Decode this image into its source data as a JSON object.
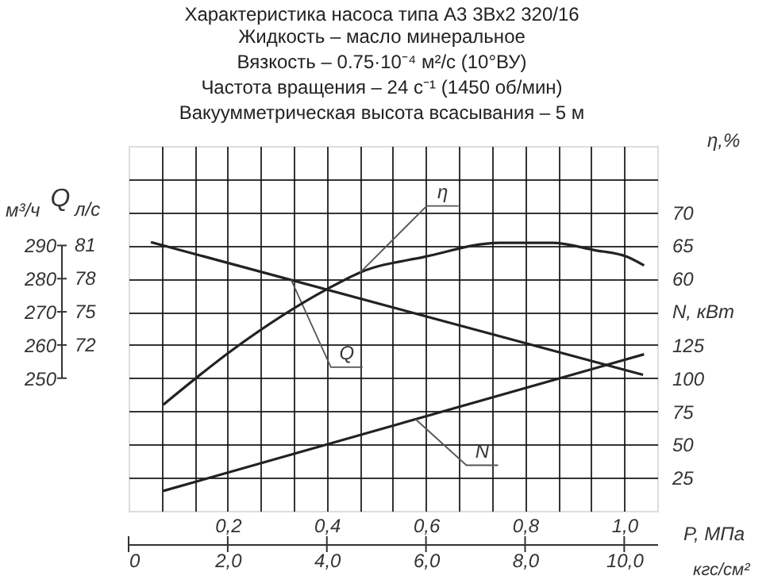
{
  "chart_data": {
    "type": "line",
    "title": "Характеристика насоса типа А3 3Вх2 320/16",
    "subtitle": "Жидкость – масло минеральное\nВязкость – 0.75·10⁻⁴ м²/с (10°ВУ)\nЧастота вращения – 24 с⁻¹ (1450 об/мин)\nВакуумметрическая высота всасывания – 5 м",
    "xlabel": "P, МПа",
    "x2label": "кгс/см²",
    "ylabel": "м³/ч",
    "y2label": "η,%",
    "y3label": "N, кВт",
    "annotations": [
      "Q",
      "л/с",
      "81",
      "78",
      "75",
      "72"
    ],
    "xlim": [
      0,
      1.0667
    ],
    "xticks": [
      {
        "value": 0.0667,
        "label": null
      },
      {
        "value": 0.1333,
        "label": null
      },
      {
        "value": 0.2,
        "label": "0,2"
      },
      {
        "value": 0.2667,
        "label": null
      },
      {
        "value": 0.3333,
        "label": null
      },
      {
        "value": 0.4,
        "label": "0,4"
      },
      {
        "value": 0.4667,
        "label": null
      },
      {
        "value": 0.5333,
        "label": null
      },
      {
        "value": 0.6,
        "label": "0,6"
      },
      {
        "value": 0.6667,
        "label": null
      },
      {
        "value": 0.7333,
        "label": null
      },
      {
        "value": 0.8,
        "label": "0,8"
      },
      {
        "value": 0.8667,
        "label": null
      },
      {
        "value": 0.9333,
        "label": null
      },
      {
        "value": 1.0,
        "label": "1,0"
      }
    ],
    "x2lim": [
      0,
      10.667
    ],
    "x2ticks": [
      0,
      {
        "value": 2,
        "label": "2,0"
      },
      {
        "value": 4,
        "label": "4,0"
      },
      {
        "value": 6,
        "label": "6,0"
      },
      {
        "value": 8,
        "label": "8,0"
      },
      {
        "value": 10,
        "label": "10,0"
      }
    ],
    "ylim": [
      210,
      320
    ],
    "yticks": [
      {
        "value": 220,
        "label": null
      },
      {
        "value": 230,
        "label": null
      },
      {
        "value": 240,
        "label": null
      },
      250,
      260,
      270,
      280,
      290,
      {
        "value": 300,
        "label": null
      },
      {
        "value": 310,
        "label": null
      }
    ],
    "y2lim": [
      25,
      80
    ],
    "y2ticks": [
      60,
      65,
      70
    ],
    "y3lim": [
      0,
      275
    ],
    "y3ticks": [
      25,
      50,
      75,
      100,
      125
    ],
    "grid": true,
    "series": [
      {
        "name": "Q",
        "color": "#222222",
        "axis": "y",
        "x": [
          0.045,
          1.038
        ],
        "values": [
          291,
          251
        ]
      },
      {
        "name": "η",
        "color": "#222222",
        "axis": "y2",
        "x": [
          0.07,
          0.212,
          0.4,
          0.469,
          0.598,
          0.748,
          0.855,
          0.94,
          1.006,
          1.04
        ],
        "values": [
          41,
          49.4,
          58.4,
          61,
          63.3,
          65.4,
          65.4,
          64.3,
          63.3,
          62
        ]
      },
      {
        "name": "N",
        "color": "#222222",
        "axis": "y3",
        "x": [
          0.07,
          1.04
        ],
        "values": [
          15,
          118
        ]
      }
    ]
  }
}
